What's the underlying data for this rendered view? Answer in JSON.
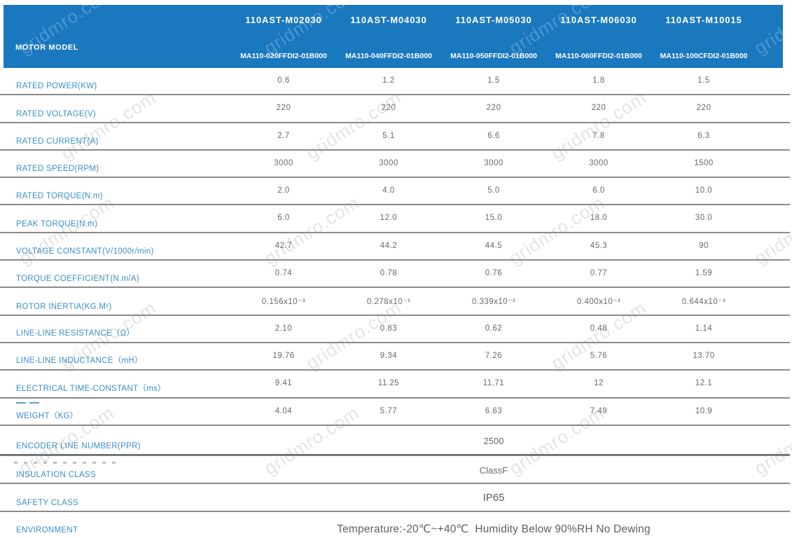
{
  "watermark": {
    "text": "gridmro.com"
  },
  "colors": {
    "header_bg": "#1a78bf",
    "label_text": "#3a8ec8",
    "value_text": "#696969",
    "row_border": "#8a8a8a"
  },
  "header": {
    "row_label": "MOTOR MODEL",
    "columns": [
      {
        "model": "110AST-M02030",
        "part": "MA110-020FFDI2-01B000"
      },
      {
        "model": "110AST-M04030",
        "part": "MA110-040FFDI2-01B000"
      },
      {
        "model": "110AST-M05030",
        "part": "MA110-050FFDI2-01B000"
      },
      {
        "model": "110AST-M06030",
        "part": "MA110-060FFDI2-01B000"
      },
      {
        "model": "110AST-M10015",
        "part": "MA110-100CFDI2-01B000"
      }
    ]
  },
  "specs": [
    {
      "label": "RATED POWER(KW)",
      "values": [
        "0.6",
        "1.2",
        "1.5",
        "1.8",
        "1.5"
      ]
    },
    {
      "label": "RATED VOLTAGE(V)",
      "values": [
        "220",
        "220",
        "220",
        "220",
        "220"
      ]
    },
    {
      "label": "RATED CURRENT(A)",
      "values": [
        "2.7",
        "5.1",
        "6.6",
        "7.8",
        "6.3"
      ]
    },
    {
      "label": "RATED SPEED(RPM)",
      "values": [
        "3000",
        "3000",
        "3000",
        "3000",
        "1500"
      ]
    },
    {
      "label": "RATED TORQUE(N.m)",
      "values": [
        "2.0",
        "4.0",
        "5.0",
        "6.0",
        "10.0"
      ]
    },
    {
      "label": "PEAK TORQUE(N.m)",
      "values": [
        "6.0",
        "12.0",
        "15.0",
        "18.0",
        "30.0"
      ]
    },
    {
      "label": "VOLTAGE CONSTANT(V/1000r/min)",
      "values": [
        "42.7",
        "44.2",
        "44.5",
        "45.3",
        "90"
      ]
    },
    {
      "label": "TORQUE COEFFICIENT(N.m/A)",
      "values": [
        "0.74",
        "0.78",
        "0.76",
        "0.77",
        "1.59"
      ]
    },
    {
      "label": "ROTOR INERTIA(KG.M²)",
      "values": [
        "0.156x10⁻³",
        "0.278x10⁻³",
        "0.339x10⁻³",
        "0.400x10⁻³",
        "0.644x10⁻³"
      ]
    },
    {
      "label": "LINE-LINE RESISTANCE（Ω）",
      "values": [
        "2.10",
        "0.83",
        "0.62",
        "0.48",
        "1.14"
      ]
    },
    {
      "label": "LINE-LINE INDUCTANCE（mH）",
      "values": [
        "19.76",
        "9.34",
        "7.26",
        "5.76",
        "13.70"
      ]
    },
    {
      "label": "ELECTRICAL TIME-CONSTANT（ms）",
      "values": [
        "9.41",
        "11.25",
        "11,71",
        "12",
        "12.1"
      ]
    },
    {
      "label": "WEIGHT（KG）",
      "values": [
        "4.04",
        "5.77",
        "6.63",
        "7.49",
        "10.9"
      ]
    }
  ],
  "span_rows": [
    {
      "label": "ENCODER LINE NUMBER(PPR)",
      "value": "2500"
    },
    {
      "label": "INSULATION CLASS",
      "value": "ClassF"
    },
    {
      "label": "SAFETY CLASS",
      "value": "IP65"
    },
    {
      "label": "ENVIRONMENT",
      "value": "Temperature:-20℃~+40℃  Humidity Below 90%RH No Dewing"
    }
  ]
}
